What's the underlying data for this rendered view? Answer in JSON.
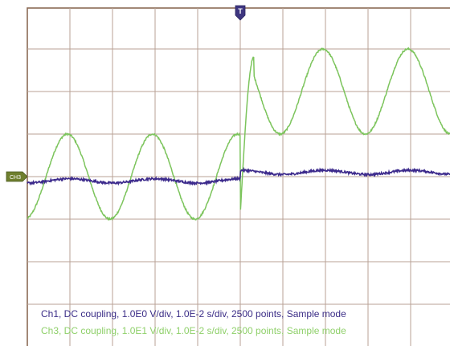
{
  "chart_data": {
    "type": "line",
    "title": "",
    "xlabel": "",
    "ylabel": "",
    "grid": true,
    "divisions": {
      "x": 10,
      "y": 8
    },
    "time_per_div_s": 0.01,
    "trigger_marker": {
      "label": "T",
      "time_s": 0.0
    },
    "channel_marker": {
      "label": "CH3"
    },
    "xlim_s": [
      -0.05,
      0.05
    ],
    "series": [
      {
        "name": "Ch1",
        "color": "#3c2a8c",
        "volts_per_div": 1.0,
        "description_text": "Ch1, DC coupling, 1.0E0 V/div, 1.0E-2 s/div, 2500 points, Sample mode",
        "segments": [
          {
            "t_start": -0.05,
            "t_end": 0.0,
            "offset_div": -0.1,
            "amplitude_div": 0.05
          },
          {
            "t_start": 0.0,
            "t_end": 0.05,
            "offset_div": 0.1,
            "amplitude_div": 0.05
          }
        ],
        "frequency_hz": 50
      },
      {
        "name": "Ch3",
        "color": "#7cc45c",
        "volts_per_div": 10.0,
        "description_text": "Ch3, DC coupling, 1.0E1 V/div, 1.0E-2 s/div, 2500 points, Sample mode",
        "segments": [
          {
            "t_start": -0.05,
            "t_end": 0.0,
            "offset_div": 0.0,
            "amplitude_div": 1.0
          },
          {
            "t_start": 0.0,
            "t_end": 0.05,
            "offset_div": 2.0,
            "amplitude_div": 1.0
          }
        ],
        "frequency_hz": 50
      }
    ]
  }
}
